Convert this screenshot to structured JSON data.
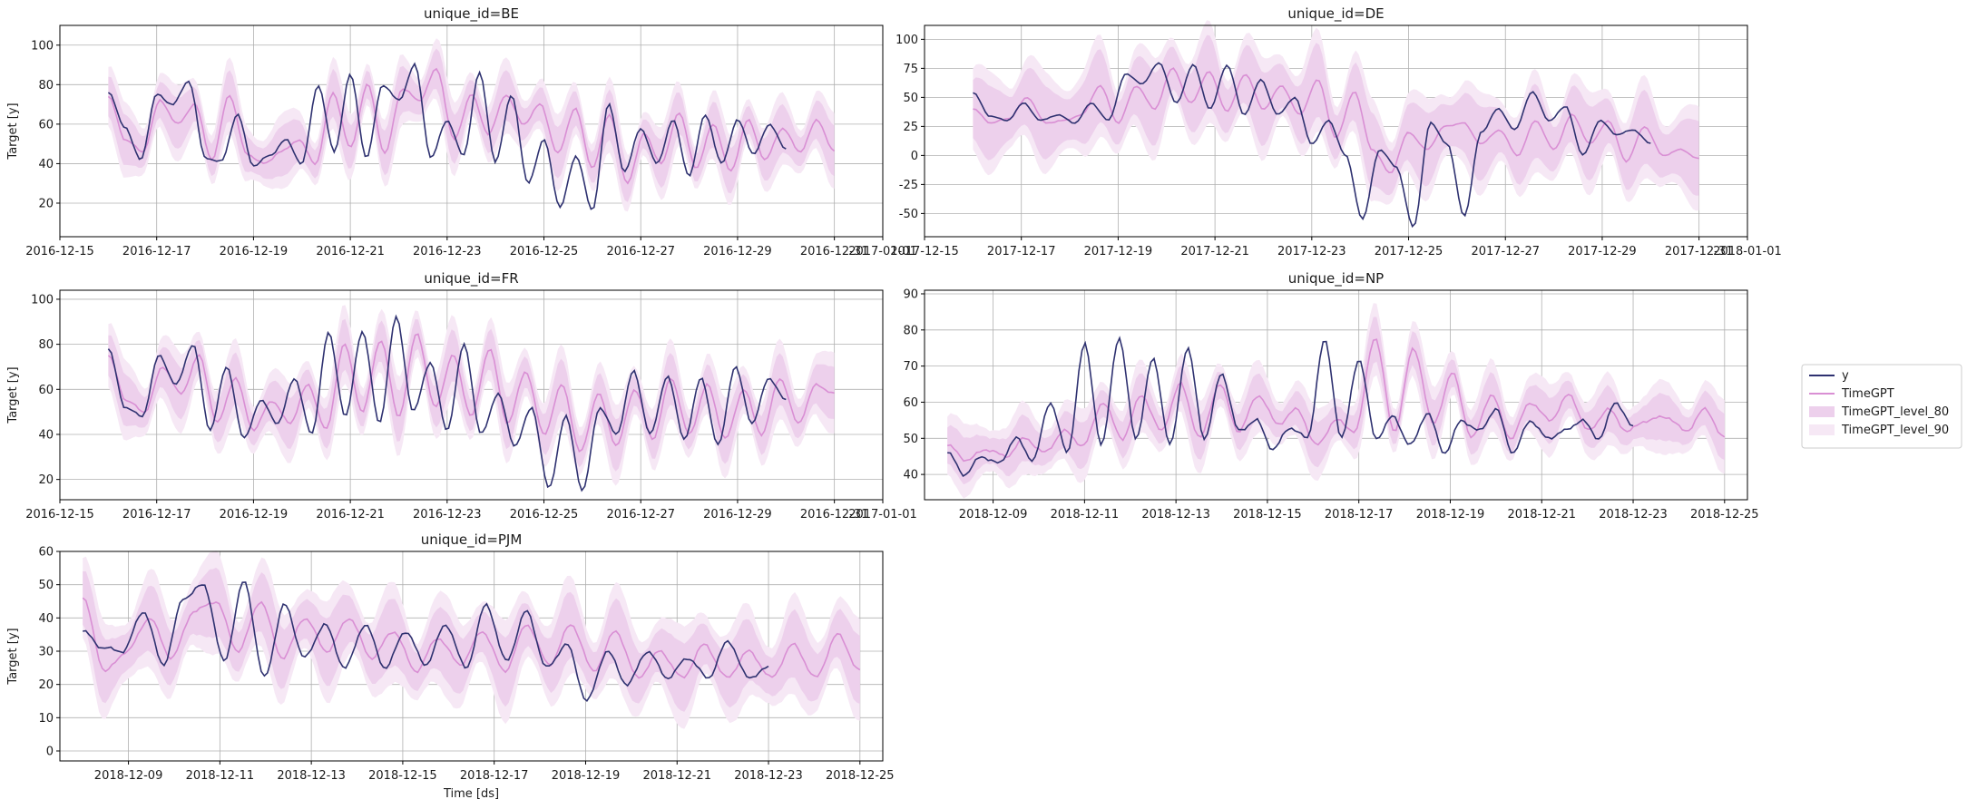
{
  "figure": {
    "legend": {
      "placement": "right",
      "entries": [
        {
          "label": "y",
          "kind": "line",
          "color": "#2e3170"
        },
        {
          "label": "TimeGPT",
          "kind": "line",
          "color": "#d98fd4"
        },
        {
          "label": "TimeGPT_level_80",
          "kind": "band",
          "color": "#edd0ec"
        },
        {
          "label": "TimeGPT_level_90",
          "kind": "band",
          "color": "#f6e8f5"
        }
      ]
    }
  },
  "chart_data": [
    {
      "type": "line",
      "title": "unique_id=BE",
      "xlabel": "",
      "ylabel": "Target [y]",
      "grid": true,
      "x_start": "2016-12-16",
      "y_end_date": "2016-12-30",
      "x_end": "2016-12-31",
      "xlim": [
        "2016-12-15",
        "2017-01-01"
      ],
      "ylim": [
        3,
        110
      ],
      "yticks": [
        20,
        40,
        60,
        80,
        100
      ],
      "xtick_labels": [
        "2016-12-15",
        "2016-12-17",
        "2016-12-19",
        "2016-12-21",
        "2016-12-23",
        "2016-12-25",
        "2016-12-27",
        "2016-12-29",
        "2016-12-31",
        "2017-01-01"
      ],
      "y_knots": [
        76,
        59,
        42,
        75,
        70,
        82,
        43,
        41,
        65,
        39,
        44,
        52,
        40,
        80,
        46,
        85,
        43,
        80,
        72,
        90,
        43,
        62,
        44,
        86,
        41,
        75,
        30,
        52,
        18,
        44,
        16,
        70,
        36,
        58,
        40,
        62,
        34,
        65,
        40,
        62,
        45,
        60,
        47
      ],
      "timegpt_knots": [
        74,
        52,
        46,
        72,
        60,
        70,
        42,
        75,
        45,
        40,
        46,
        52,
        40,
        76,
        48,
        80,
        45,
        78,
        72,
        88,
        52,
        75,
        55,
        75,
        60,
        70,
        45,
        68,
        38,
        65,
        30,
        55,
        40,
        66,
        38,
        60,
        36,
        62,
        42,
        58,
        46,
        62,
        46
      ],
      "pi80": 10,
      "pi90": 15
    },
    {
      "type": "line",
      "title": "unique_id=DE",
      "xlabel": "",
      "ylabel": "",
      "grid": true,
      "x_start": "2017-12-16",
      "y_end_date": "2017-12-30",
      "x_end": "2017-12-31",
      "xlim": [
        "2017-12-15",
        "2018-01-01"
      ],
      "ylim": [
        -70,
        112
      ],
      "yticks": [
        -50,
        -25,
        0,
        25,
        50,
        75,
        100
      ],
      "xtick_labels": [
        "2017-12-15",
        "2017-12-17",
        "2017-12-19",
        "2017-12-21",
        "2017-12-23",
        "2017-12-25",
        "2017-12-27",
        "2017-12-29",
        "2017-12-31",
        "2018-01-01"
      ],
      "y_knots": [
        54,
        34,
        30,
        45,
        30,
        35,
        28,
        45,
        30,
        70,
        62,
        80,
        45,
        78,
        40,
        78,
        35,
        65,
        35,
        50,
        10,
        30,
        0,
        -55,
        5,
        -10,
        -62,
        28,
        10,
        -52,
        20,
        40,
        22,
        55,
        30,
        42,
        0,
        30,
        18,
        22,
        10
      ],
      "timegpt_knots": [
        40,
        28,
        32,
        50,
        28,
        30,
        35,
        60,
        28,
        60,
        40,
        75,
        45,
        72,
        38,
        70,
        40,
        60,
        35,
        65,
        15,
        55,
        5,
        -15,
        20,
        5,
        25,
        28,
        10,
        22,
        0,
        30,
        5,
        35,
        10,
        30,
        -5,
        25,
        0,
        5,
        -3
      ],
      "pi80": 25,
      "pi90": 35
    },
    {
      "type": "line",
      "title": "unique_id=FR",
      "xlabel": "",
      "ylabel": "Target [y]",
      "grid": true,
      "x_start": "2016-12-16",
      "y_end_date": "2016-12-30",
      "x_end": "2016-12-31",
      "xlim": [
        "2016-12-15",
        "2017-01-01"
      ],
      "ylim": [
        11,
        104
      ],
      "yticks": [
        20,
        40,
        60,
        80,
        100
      ],
      "xtick_labels": [
        "2016-12-15",
        "2016-12-17",
        "2016-12-19",
        "2016-12-21",
        "2016-12-23",
        "2016-12-25",
        "2016-12-27",
        "2016-12-29",
        "2016-12-31",
        "2017-01-01"
      ],
      "y_knots": [
        78,
        52,
        48,
        75,
        62,
        80,
        42,
        70,
        38,
        55,
        45,
        65,
        40,
        85,
        48,
        86,
        45,
        92,
        50,
        72,
        42,
        80,
        40,
        58,
        35,
        52,
        16,
        48,
        15,
        52,
        40,
        68,
        40,
        66,
        38,
        65,
        35,
        70,
        45,
        65,
        55
      ],
      "timegpt_knots": [
        75,
        55,
        50,
        70,
        58,
        75,
        45,
        65,
        42,
        55,
        45,
        62,
        42,
        80,
        50,
        82,
        48,
        85,
        52,
        75,
        48,
        78,
        45,
        68,
        40,
        62,
        32,
        58,
        35,
        60,
        38,
        65,
        40,
        62,
        38,
        60,
        40,
        65,
        45,
        62,
        58
      ],
      "pi80": 9,
      "pi90": 14
    },
    {
      "type": "line",
      "title": "unique_id=NP",
      "xlabel": "",
      "ylabel": "",
      "grid": true,
      "x_start": "2018-12-08",
      "y_end_date": "2018-12-23",
      "x_end": "2018-12-25",
      "xlim": [
        "2018-12-07.5",
        "2018-12-25.5"
      ],
      "ylim": [
        33,
        91
      ],
      "yticks": [
        40,
        50,
        60,
        70,
        80,
        90
      ],
      "xtick_labels": [
        "2018-12-09",
        "2018-12-11",
        "2018-12-13",
        "2018-12-15",
        "2018-12-17",
        "2018-12-19",
        "2018-12-21",
        "2018-12-23",
        "2018-12-25"
      ],
      "y_knots": [
        46,
        40,
        45,
        43,
        50,
        44,
        60,
        46,
        76,
        48,
        78,
        50,
        72,
        48,
        75,
        50,
        68,
        52,
        55,
        47,
        53,
        50,
        77,
        50,
        72,
        50,
        56,
        48,
        57,
        46,
        55,
        52,
        58,
        46,
        55,
        50,
        52,
        55,
        50,
        60,
        53
      ],
      "timegpt_knots": [
        48,
        44,
        47,
        45,
        50,
        46,
        52,
        48,
        60,
        50,
        62,
        52,
        65,
        50,
        65,
        52,
        62,
        54,
        58,
        48,
        55,
        52,
        78,
        52,
        75,
        54,
        68,
        50,
        62,
        50,
        60,
        55,
        62,
        52,
        58,
        52,
        55,
        56,
        52,
        58,
        50
      ],
      "pi80": 5,
      "pi90": 8
    },
    {
      "type": "line",
      "title": "unique_id=PJM",
      "xlabel": "Time [ds]",
      "ylabel": "Target [y]",
      "grid": true,
      "x_start": "2018-12-08",
      "y_end_date": "2018-12-23",
      "x_end": "2018-12-25",
      "xlim": [
        "2018-12-07.5",
        "2018-12-25.5"
      ],
      "ylim": [
        -3,
        60
      ],
      "yticks": [
        0,
        10,
        20,
        30,
        40,
        50,
        60
      ],
      "xtick_labels": [
        "2018-12-09",
        "2018-12-11",
        "2018-12-13",
        "2018-12-15",
        "2018-12-17",
        "2018-12-19",
        "2018-12-21",
        "2018-12-23",
        "2018-12-25"
      ],
      "y_knots": [
        36,
        31,
        30,
        42,
        26,
        46,
        50,
        27,
        51,
        22,
        44,
        28,
        38,
        25,
        38,
        25,
        36,
        26,
        38,
        25,
        44,
        27,
        42,
        25,
        32,
        15,
        30,
        20,
        30,
        22,
        28,
        22,
        33,
        22,
        25
      ],
      "timegpt_knots": [
        46,
        24,
        30,
        40,
        28,
        42,
        45,
        30,
        45,
        28,
        40,
        30,
        40,
        28,
        36,
        24,
        34,
        26,
        36,
        24,
        38,
        26,
        38,
        24,
        36,
        22,
        30,
        22,
        32,
        22,
        30,
        22,
        32,
        22,
        35,
        24
      ],
      "pi80": 8,
      "pi90": 12
    }
  ]
}
